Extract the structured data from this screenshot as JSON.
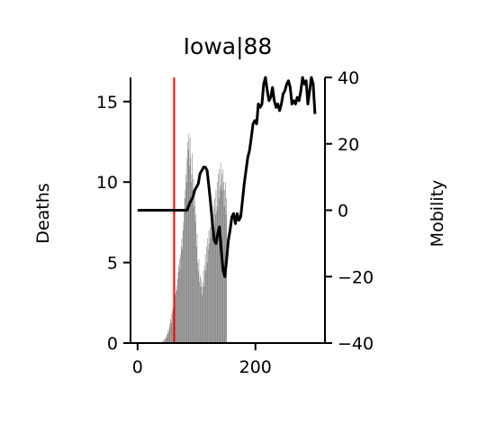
{
  "chart_data": {
    "type": "bar",
    "title": "Iowa|88",
    "xlabel": "",
    "ylabel": "Deaths",
    "y2label": "Mobility",
    "xlim": [
      -12,
      318
    ],
    "ylim": [
      0,
      16.5
    ],
    "y2lim": [
      -40,
      40
    ],
    "xticks": [
      0,
      200
    ],
    "yticks": [
      0,
      5,
      10,
      15
    ],
    "y2ticks": [
      -40,
      -20,
      0,
      20,
      40
    ],
    "grid": false,
    "colors": {
      "bars": "#808080",
      "mobility": "#000000",
      "marker": "#ff0000"
    },
    "marker_x": 62,
    "deaths_series": {
      "x_start": 40,
      "values": [
        0,
        0,
        0.1,
        0,
        0.2,
        0.1,
        0.3,
        0.2,
        0.4,
        0.3,
        0.5,
        0.6,
        0.8,
        0.7,
        1,
        1.2,
        1.5,
        1.3,
        1.8,
        2,
        2.2,
        2.5,
        2.8,
        2.4,
        3,
        3.2,
        3.6,
        3.3,
        4,
        4.4,
        4.8,
        5.2,
        4.6,
        5.5,
        6,
        6.5,
        5.8,
        7,
        7.5,
        8.2,
        9,
        9.5,
        10.5,
        10,
        11.5,
        12.5,
        12,
        13,
        11,
        12.8,
        11.5,
        10,
        10.5,
        11.8,
        9.5,
        10.2,
        8.5,
        9,
        7.5,
        8,
        6,
        6.8,
        5,
        4.5,
        5.2,
        3.8,
        4.2,
        3.5,
        4,
        3.5,
        3,
        3.8,
        4.5,
        3.5,
        4.8,
        5.5,
        4.5,
        6,
        5,
        6.5,
        5.8,
        7,
        6.2,
        7.2,
        6.5,
        7.5,
        6.8,
        8,
        7,
        8.5,
        7.2,
        9,
        8,
        9.5,
        8.2,
        10,
        8.5,
        10.5,
        9,
        10.8,
        9.5,
        11.2,
        9.8,
        10.5,
        9.5,
        10.8,
        10,
        8.5,
        9.5,
        10,
        8,
        9
      ]
    },
    "mobility_series": {
      "x": [
        0,
        20,
        40,
        60,
        84,
        88,
        91,
        94,
        97,
        100,
        103,
        106,
        109,
        112,
        115,
        118,
        121,
        124,
        127,
        130,
        133,
        136,
        139,
        142,
        145,
        148,
        151,
        154,
        157,
        160,
        163,
        166,
        169,
        172,
        175,
        178,
        181,
        184,
        187,
        190,
        193,
        196,
        199,
        202,
        205,
        208,
        211,
        214,
        217,
        220,
        223,
        226,
        229,
        232,
        235,
        238,
        241,
        244,
        247,
        250,
        253,
        256,
        259,
        262,
        265,
        268,
        271,
        274,
        277,
        280,
        283,
        286,
        289,
        292,
        295,
        298,
        301
      ],
      "values": [
        0,
        0,
        0,
        0,
        0,
        2,
        3,
        4,
        6,
        7,
        8,
        11,
        12,
        13,
        13,
        12,
        7,
        2,
        -4,
        -9,
        -10,
        -7,
        -5,
        -12,
        -18,
        -20,
        -15,
        -9,
        -6,
        -2,
        -1,
        -4,
        -1,
        -3,
        -2,
        3,
        8,
        12,
        16,
        18,
        22,
        26,
        27,
        26,
        32,
        31,
        32,
        38,
        40,
        36,
        33,
        34,
        37,
        33,
        31,
        32,
        30,
        32,
        35,
        36,
        38,
        39,
        37,
        32,
        33,
        32,
        34,
        33,
        36,
        40,
        38,
        39,
        32,
        36,
        40,
        38,
        29
      ]
    }
  }
}
